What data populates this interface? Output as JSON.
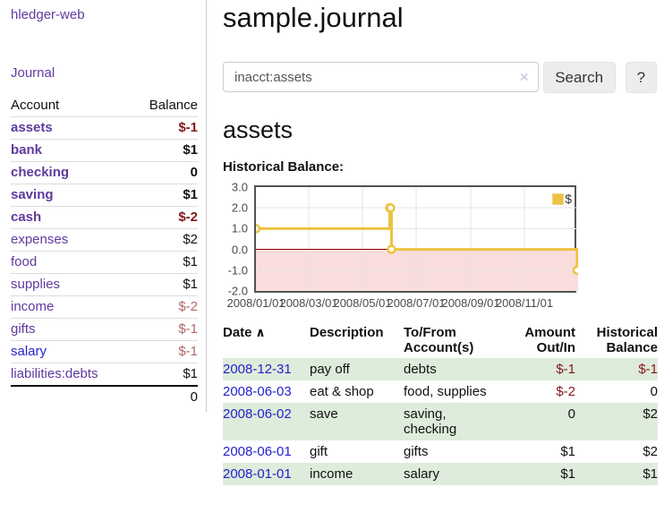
{
  "app": {
    "brand": "hledger-web"
  },
  "sidebar": {
    "journal_link": "Journal",
    "accounts": {
      "header_account": "Account",
      "header_balance": "Balance",
      "rows": [
        {
          "name": "assets",
          "balance": "$-1",
          "indent": 1,
          "bold": true,
          "balance_tone": "neg-strong"
        },
        {
          "name": "bank",
          "balance": "$1",
          "indent": 2,
          "bold": true,
          "balance_tone": ""
        },
        {
          "name": "checking",
          "balance": "0",
          "indent": 3,
          "bold": true,
          "balance_tone": ""
        },
        {
          "name": "saving",
          "balance": "$1",
          "indent": 3,
          "bold": true,
          "balance_tone": ""
        },
        {
          "name": "cash",
          "balance": "$-2",
          "indent": 2,
          "bold": true,
          "balance_tone": "neg-strong"
        },
        {
          "name": "expenses",
          "balance": "$2",
          "indent": 1,
          "bold": false,
          "balance_tone": ""
        },
        {
          "name": "food",
          "balance": "$1",
          "indent": 2,
          "bold": false,
          "balance_tone": ""
        },
        {
          "name": "supplies",
          "balance": "$1",
          "indent": 2,
          "bold": false,
          "balance_tone": ""
        },
        {
          "name": "income",
          "balance": "$-2",
          "indent": 1,
          "bold": false,
          "balance_tone": "neg-soft"
        },
        {
          "name": "gifts",
          "balance": "$-1",
          "indent": 2,
          "bold": false,
          "balance_tone": "neg-soft"
        },
        {
          "name": "salary",
          "balance": "$-1",
          "indent": 2,
          "bold": false,
          "balance_tone": "neg-soft",
          "link": "blue"
        },
        {
          "name": "liabilities:debts",
          "balance": "$1",
          "indent": 1,
          "bold": false,
          "balance_tone": ""
        }
      ],
      "total": "0"
    }
  },
  "main": {
    "title": "sample.journal",
    "search": {
      "value": "inacct:assets",
      "clear_icon": "✕",
      "button_label": "Search",
      "help_label": "?"
    },
    "account_heading": "assets",
    "chart_heading": "Historical Balance:"
  },
  "chart_data": {
    "type": "line",
    "step": true,
    "title": "Historical Balance:",
    "series": [
      {
        "name": "$",
        "color": "#edc240",
        "points": [
          [
            "2008-01-01",
            1
          ],
          [
            "2008-06-01",
            2
          ],
          [
            "2008-06-02",
            2
          ],
          [
            "2008-06-03",
            0
          ],
          [
            "2008-12-31",
            -1
          ]
        ]
      }
    ],
    "ylim": [
      -2,
      3
    ],
    "xlim": [
      "2008-01-01",
      "2009-01-01"
    ],
    "y_ticks": [
      "3.0",
      "2.0",
      "1.0",
      "0.0",
      "-1.0",
      "-2.0"
    ],
    "x_ticks": [
      "2008/01/01",
      "2008/03/01",
      "2008/05/01",
      "2008/07/01",
      "2008/09/01",
      "2008/11/01"
    ],
    "legend": {
      "label": "$",
      "position": "top-right"
    },
    "grid": true,
    "colors": {
      "line": "#edc240",
      "marker_fill": "#ffffff",
      "gridline": "#e5e5e5",
      "plot_border": "#545454",
      "negative_region": "#f9dcdc",
      "zero_line": "#8b0000"
    }
  },
  "register": {
    "headers": [
      {
        "key": "date",
        "label": "Date",
        "sort_icon": "∧",
        "sortable": true
      },
      {
        "key": "description",
        "label": "Description"
      },
      {
        "key": "tofrom",
        "label": "To/From Account(s)"
      },
      {
        "key": "amount",
        "label": "Amount Out/In",
        "numeric": true
      },
      {
        "key": "balance",
        "label": "Historical Balance",
        "numeric": true
      }
    ],
    "rows": [
      {
        "date": "2008-12-31",
        "description": "pay off",
        "accounts_lines": [
          "debts"
        ],
        "amount": "$-1",
        "balance": "$-1"
      },
      {
        "date": "2008-06-03",
        "description": "eat & shop",
        "accounts_lines": [
          "food, supplies"
        ],
        "amount": "$-2",
        "balance": "0"
      },
      {
        "date": "2008-06-02",
        "description": "save",
        "accounts_lines": [
          "saving,",
          "checking"
        ],
        "amount": "0",
        "balance": "$2"
      },
      {
        "date": "2008-06-01",
        "description": "gift",
        "accounts_lines": [
          "gifts"
        ],
        "amount": "$1",
        "balance": "$2"
      },
      {
        "date": "2008-01-01",
        "description": "income",
        "accounts_lines": [
          "salary"
        ],
        "amount": "$1",
        "balance": "$1"
      }
    ]
  },
  "ui_colors": {
    "link_purple": "#5f3a9e",
    "link_blue": "#2222cc",
    "negative_strong": "#811a1a",
    "negative_soft": "#b16868",
    "row_green": "#deecdb"
  }
}
